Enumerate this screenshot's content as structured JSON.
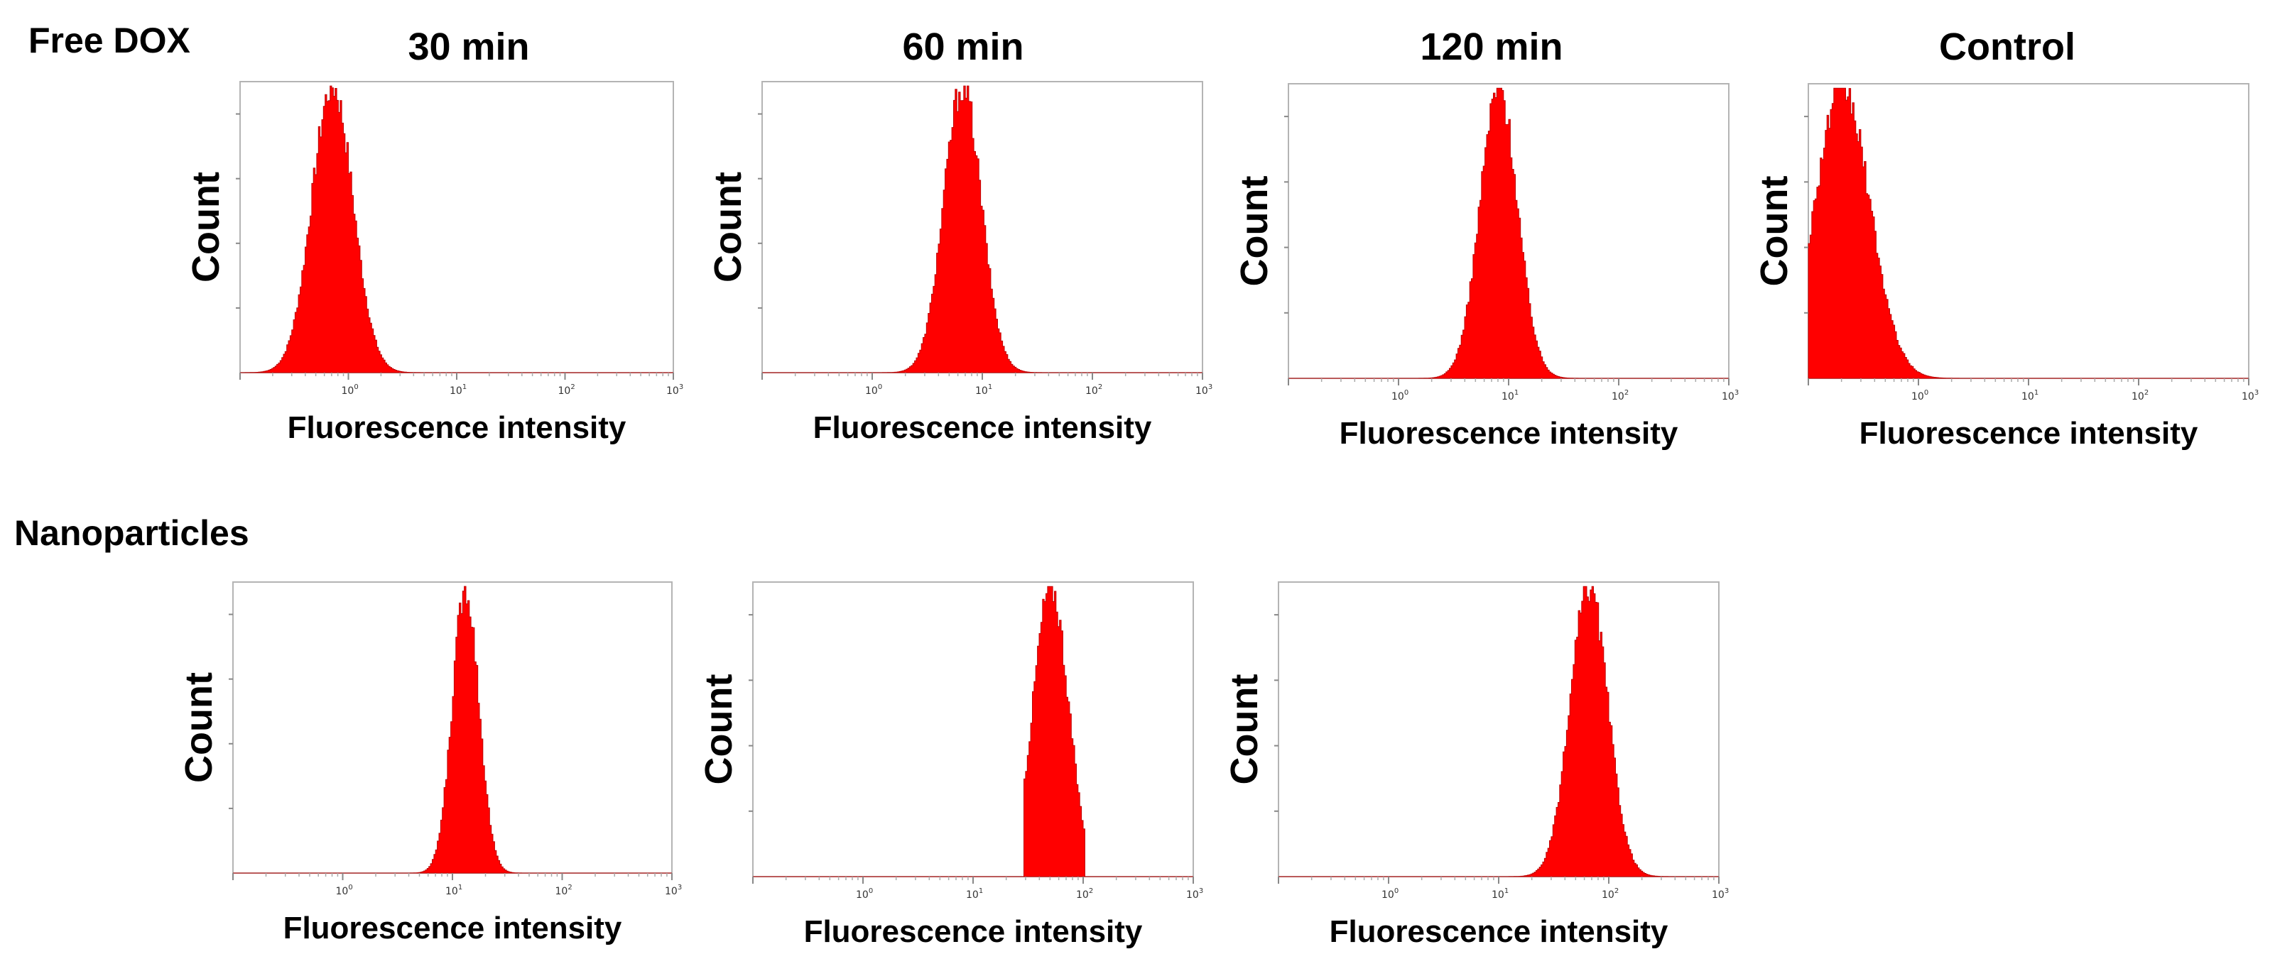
{
  "figure": {
    "row_labels": [
      "Free DOX",
      "Nanoparticles"
    ],
    "column_titles": [
      "30 min",
      "60 min",
      "120 min",
      "Control"
    ]
  },
  "colors": {
    "histogram_fill": "#ff0000",
    "histogram_edge": "#c00000",
    "frame": "#b4b4b4"
  },
  "chart_data": [
    {
      "type": "histogram",
      "row": "Free DOX",
      "column": "30 min",
      "title": "30 min",
      "xlabel": "Fluorescence intensity",
      "ylabel": "Count",
      "xscale": "log",
      "xlim": [
        0.1,
        1000
      ],
      "xticks": [
        "10^0",
        "10^1",
        "10^2",
        "10^3"
      ],
      "peak_x": 0.7,
      "log_sigma": 0.19,
      "skew": 0.0,
      "cutoff_low": null,
      "cutoff_high": null
    },
    {
      "type": "histogram",
      "row": "Free DOX",
      "column": "60 min",
      "title": "60 min",
      "xlabel": "Fluorescence intensity",
      "ylabel": "Count",
      "xscale": "log",
      "xlim": [
        0.1,
        1000
      ],
      "xticks": [
        "10^0",
        "10^1",
        "10^2",
        "10^3"
      ],
      "peak_x": 6.5,
      "log_sigma": 0.17,
      "skew": 0.0,
      "cutoff_low": null,
      "cutoff_high": null
    },
    {
      "type": "histogram",
      "row": "Free DOX",
      "column": "120 min",
      "title": "120 min",
      "xlabel": "Fluorescence intensity",
      "ylabel": "Count",
      "xscale": "log",
      "xlim": [
        0.1,
        1000
      ],
      "xticks": [
        "10^0",
        "10^1",
        "10^2",
        "10^3"
      ],
      "peak_x": 8.0,
      "log_sigma": 0.17,
      "skew": 0.0,
      "cutoff_low": null,
      "cutoff_high": null
    },
    {
      "type": "histogram",
      "row": "Free DOX",
      "column": "Control",
      "title": "Control",
      "xlabel": "Fluorescence intensity",
      "ylabel": "Count",
      "xscale": "log",
      "xlim": [
        0.1,
        1000
      ],
      "xticks": [
        "10^0",
        "10^1",
        "10^2",
        "10^3"
      ],
      "peak_x": 0.2,
      "log_sigma": 0.25,
      "skew": 0.0,
      "cutoff_low": 0.1,
      "cutoff_high": null
    },
    {
      "type": "histogram",
      "row": "Nanoparticles",
      "column": "30 min",
      "title": "",
      "xlabel": "Fluorescence intensity",
      "ylabel": "Count",
      "xscale": "log",
      "xlim": [
        0.1,
        1000
      ],
      "xticks": [
        "10^0",
        "10^1",
        "10^2",
        "10^3"
      ],
      "peak_x": 13,
      "log_sigma": 0.12,
      "skew": 0.0,
      "cutoff_low": null,
      "cutoff_high": null
    },
    {
      "type": "histogram",
      "row": "Nanoparticles",
      "column": "60 min",
      "title": "",
      "xlabel": "Fluorescence intensity",
      "ylabel": "Count",
      "xscale": "log",
      "xlim": [
        0.1,
        1000
      ],
      "xticks": [
        "10^0",
        "10^1",
        "10^2",
        "10^3"
      ],
      "peak_x": 50,
      "log_sigma": 0.16,
      "skew": 0.0,
      "cutoff_low": 28,
      "cutoff_high": 100
    },
    {
      "type": "histogram",
      "row": "Nanoparticles",
      "column": "120 min",
      "title": "",
      "xlabel": "Fluorescence intensity",
      "ylabel": "Count",
      "xscale": "log",
      "xlim": [
        0.1,
        1000
      ],
      "xticks": [
        "10^0",
        "10^1",
        "10^2",
        "10^3"
      ],
      "peak_x": 65,
      "log_sigma": 0.17,
      "skew": 0.0,
      "cutoff_low": null,
      "cutoff_high": null
    }
  ]
}
